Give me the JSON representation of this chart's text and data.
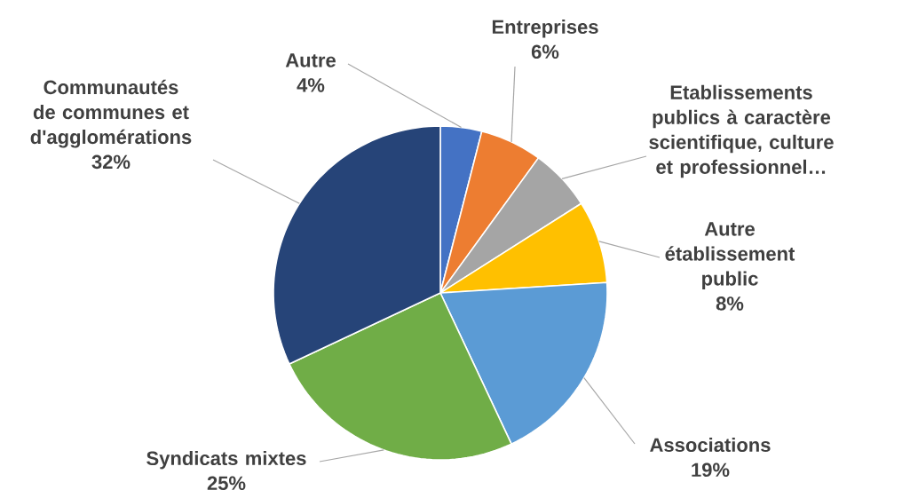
{
  "chart_data": {
    "type": "pie",
    "categories": [
      "Autre",
      "Entreprises",
      "Etablissements publics à caractère scientifique, culture et professionnel…",
      "Autre établissement public",
      "Associations",
      "Syndicats mixtes",
      "Communautés de communes et d'agglomérations"
    ],
    "values": [
      4,
      6,
      6,
      8,
      19,
      25,
      32
    ],
    "value_labels": [
      "4%",
      "6%",
      null,
      "8%",
      "19%",
      "25%",
      "32%"
    ],
    "colors": [
      "#4472c4",
      "#ed7d31",
      "#a5a5a5",
      "#ffc000",
      "#5b9bd5",
      "#70ad47",
      "#264478"
    ]
  }
}
